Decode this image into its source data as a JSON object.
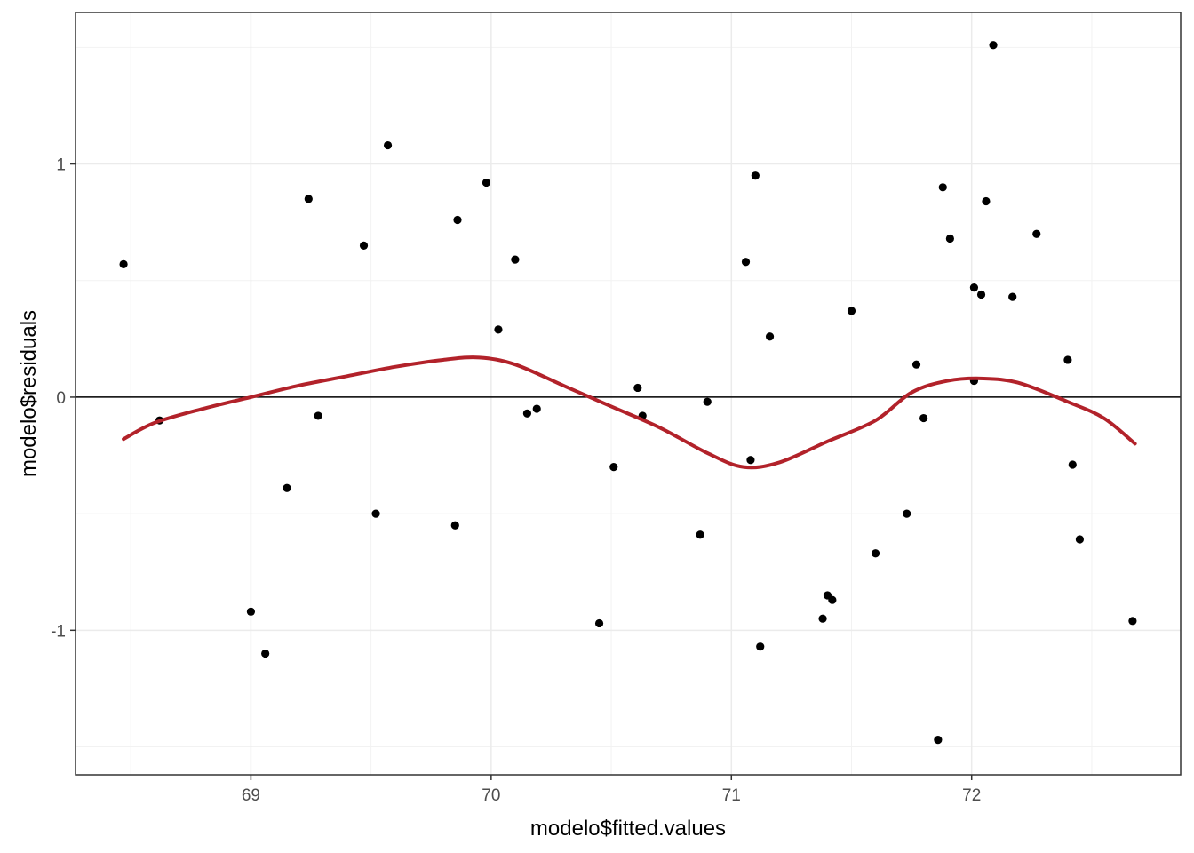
{
  "chart_data": {
    "type": "scatter",
    "title": "",
    "xlabel": "modelo$fitted.values",
    "ylabel": "modelo$residuals",
    "xlim": [
      68.27,
      72.87
    ],
    "ylim": [
      -1.62,
      1.65
    ],
    "x_ticks": [
      69,
      70,
      71,
      72
    ],
    "x_tick_labels": [
      "69",
      "70",
      "71",
      "72"
    ],
    "x_minor_ticks": [
      68.5,
      69.5,
      70.5,
      71.5,
      72.5
    ],
    "y_ticks": [
      -1,
      0,
      1
    ],
    "y_tick_labels": [
      "-1",
      "0",
      "1"
    ],
    "y_minor_ticks": [
      -1.5,
      -0.5,
      0.5,
      1.5
    ],
    "grid": true,
    "legend": "none",
    "reference_line_y": 0,
    "colors": {
      "points": "#000000",
      "smooth": "#b2222a",
      "reference_line": "#000000",
      "grid": "#ebebeb",
      "panel_border": "#333333"
    },
    "points": [
      {
        "x": 68.47,
        "y": 0.57
      },
      {
        "x": 68.62,
        "y": -0.1
      },
      {
        "x": 69.0,
        "y": -0.92
      },
      {
        "x": 69.06,
        "y": -1.1
      },
      {
        "x": 69.15,
        "y": -0.39
      },
      {
        "x": 69.24,
        "y": 0.85
      },
      {
        "x": 69.28,
        "y": -0.08
      },
      {
        "x": 69.47,
        "y": 0.65
      },
      {
        "x": 69.52,
        "y": -0.5
      },
      {
        "x": 69.57,
        "y": 1.08
      },
      {
        "x": 69.85,
        "y": -0.55
      },
      {
        "x": 69.86,
        "y": 0.76
      },
      {
        "x": 69.98,
        "y": 0.92
      },
      {
        "x": 70.03,
        "y": 0.29
      },
      {
        "x": 70.1,
        "y": 0.59
      },
      {
        "x": 70.15,
        "y": -0.07
      },
      {
        "x": 70.19,
        "y": -0.05
      },
      {
        "x": 70.45,
        "y": -0.97
      },
      {
        "x": 70.51,
        "y": -0.3
      },
      {
        "x": 70.61,
        "y": 0.04
      },
      {
        "x": 70.63,
        "y": -0.08
      },
      {
        "x": 70.87,
        "y": -0.59
      },
      {
        "x": 70.9,
        "y": -0.02
      },
      {
        "x": 71.06,
        "y": 0.58
      },
      {
        "x": 71.08,
        "y": -0.27
      },
      {
        "x": 71.1,
        "y": 0.95
      },
      {
        "x": 71.12,
        "y": -1.07
      },
      {
        "x": 71.16,
        "y": 0.26
      },
      {
        "x": 71.38,
        "y": -0.95
      },
      {
        "x": 71.4,
        "y": -0.85
      },
      {
        "x": 71.42,
        "y": -0.87
      },
      {
        "x": 71.5,
        "y": 0.37
      },
      {
        "x": 71.6,
        "y": -0.67
      },
      {
        "x": 71.73,
        "y": -0.5
      },
      {
        "x": 71.77,
        "y": 0.14
      },
      {
        "x": 71.8,
        "y": -0.09
      },
      {
        "x": 71.86,
        "y": -1.47
      },
      {
        "x": 71.88,
        "y": 0.9
      },
      {
        "x": 71.91,
        "y": 0.68
      },
      {
        "x": 72.01,
        "y": 0.47
      },
      {
        "x": 72.01,
        "y": 0.07
      },
      {
        "x": 72.04,
        "y": 0.44
      },
      {
        "x": 72.06,
        "y": 0.84
      },
      {
        "x": 72.09,
        "y": 1.51
      },
      {
        "x": 72.17,
        "y": 0.43
      },
      {
        "x": 72.27,
        "y": 0.7
      },
      {
        "x": 72.4,
        "y": 0.16
      },
      {
        "x": 72.42,
        "y": -0.29
      },
      {
        "x": 72.45,
        "y": -0.61
      },
      {
        "x": 72.67,
        "y": -0.96
      }
    ],
    "smooth": [
      {
        "x": 68.47,
        "y": -0.18
      },
      {
        "x": 68.6,
        "y": -0.11
      },
      {
        "x": 68.8,
        "y": -0.05
      },
      {
        "x": 69.0,
        "y": 0.0
      },
      {
        "x": 69.2,
        "y": 0.05
      },
      {
        "x": 69.4,
        "y": 0.09
      },
      {
        "x": 69.6,
        "y": 0.13
      },
      {
        "x": 69.8,
        "y": 0.16
      },
      {
        "x": 69.95,
        "y": 0.17
      },
      {
        "x": 70.1,
        "y": 0.14
      },
      {
        "x": 70.3,
        "y": 0.05
      },
      {
        "x": 70.5,
        "y": -0.04
      },
      {
        "x": 70.7,
        "y": -0.13
      },
      {
        "x": 70.9,
        "y": -0.24
      },
      {
        "x": 71.05,
        "y": -0.3
      },
      {
        "x": 71.2,
        "y": -0.28
      },
      {
        "x": 71.4,
        "y": -0.19
      },
      {
        "x": 71.6,
        "y": -0.1
      },
      {
        "x": 71.75,
        "y": 0.02
      },
      {
        "x": 71.9,
        "y": 0.07
      },
      {
        "x": 72.05,
        "y": 0.08
      },
      {
        "x": 72.2,
        "y": 0.06
      },
      {
        "x": 72.4,
        "y": -0.02
      },
      {
        "x": 72.55,
        "y": -0.09
      },
      {
        "x": 72.68,
        "y": -0.2
      }
    ]
  }
}
